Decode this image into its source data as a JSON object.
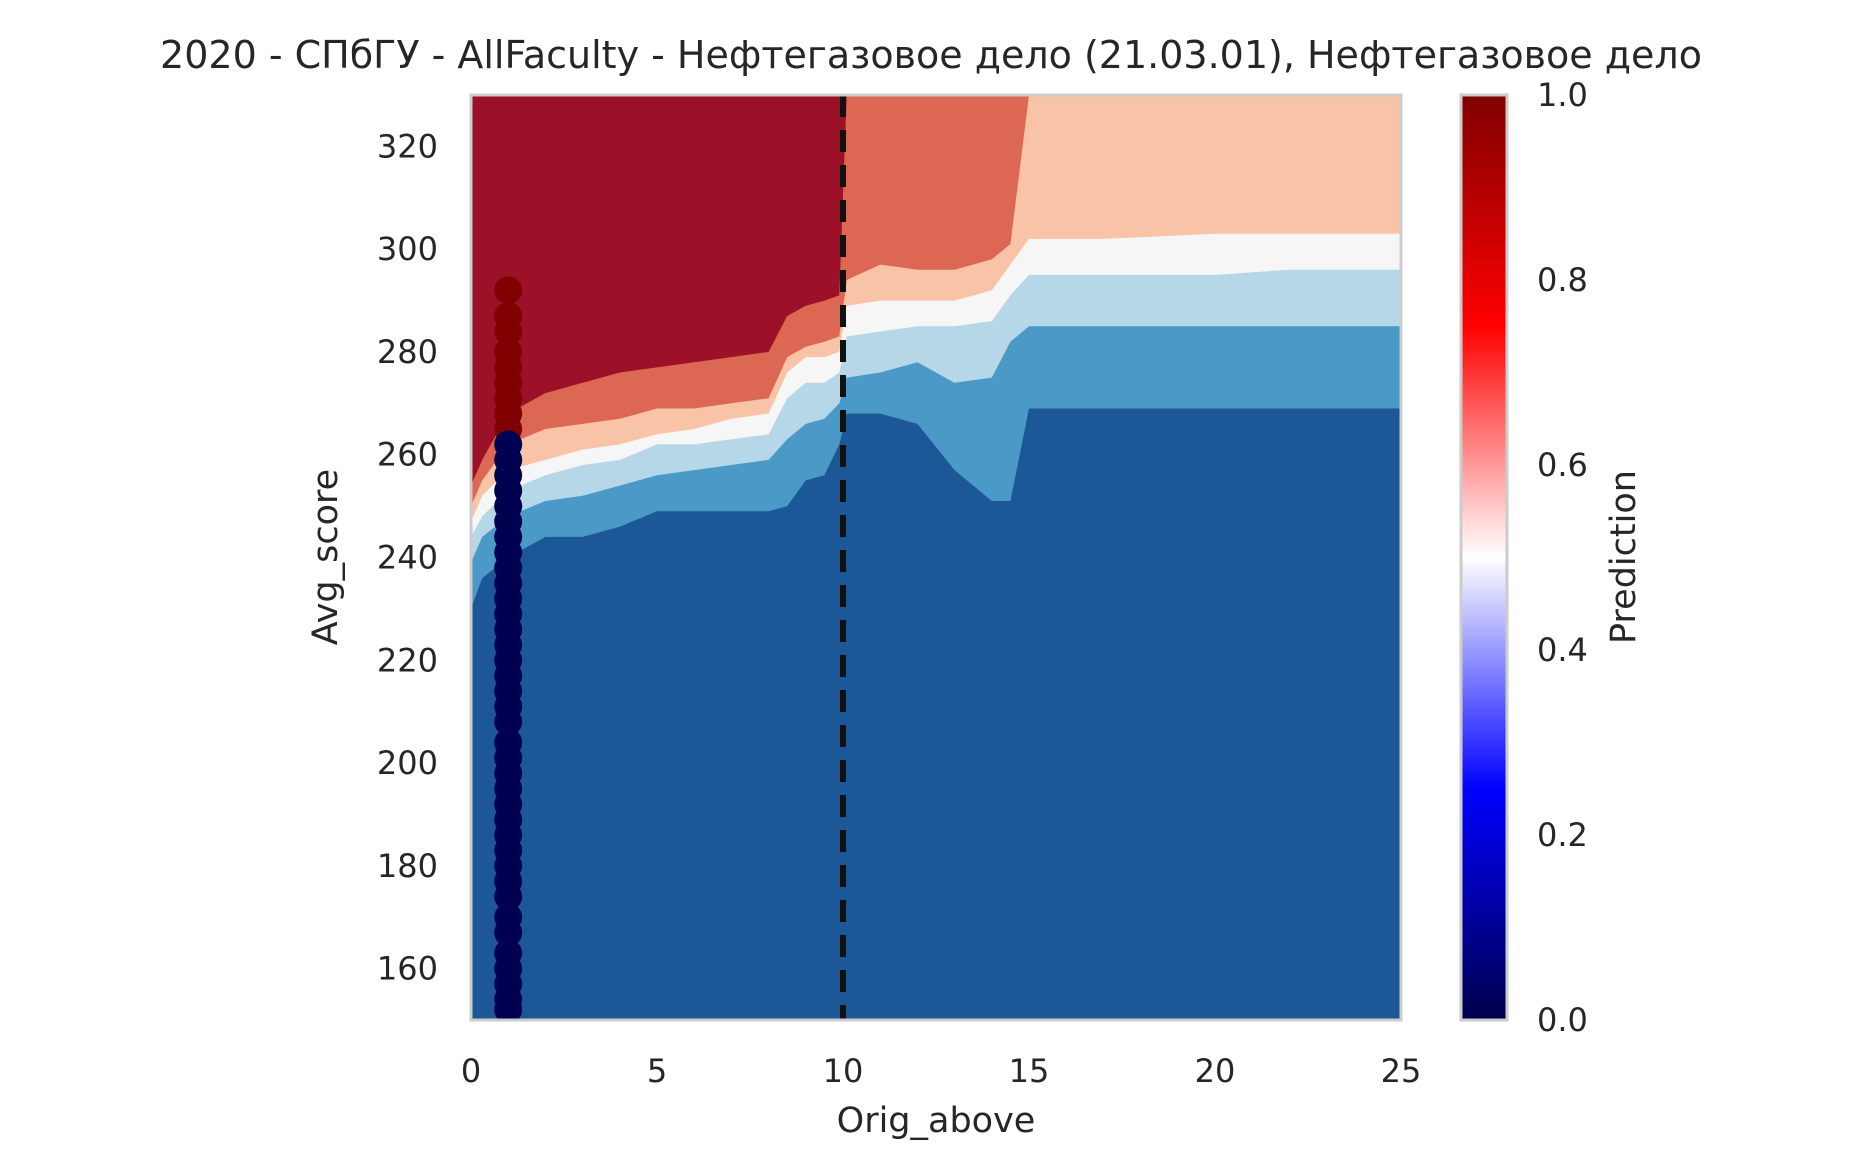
{
  "chart_data": {
    "type": "heatmap",
    "subtype": "filled-contour decision surface with scatter overlay",
    "title": "2020 - СПбГУ - AllFaculty - Нефтегазовое дело (21.03.01), Нефтегазовое дело",
    "xlabel": "Orig_above",
    "ylabel": "Avg_score",
    "xlim": [
      0,
      25
    ],
    "ylim": [
      150,
      330
    ],
    "x_ticks": [
      0,
      5,
      10,
      15,
      20,
      25
    ],
    "y_ticks": [
      160,
      180,
      200,
      220,
      240,
      260,
      280,
      300,
      320
    ],
    "grid": false,
    "colorbar": {
      "label": "Prediction",
      "range": [
        0.0,
        1.0
      ],
      "ticks": [
        0.0,
        0.2,
        0.4,
        0.6,
        0.8,
        1.0
      ],
      "colormap": "seismic",
      "stops": [
        "#00004d",
        "#0000ff",
        "#ffffff",
        "#ff0000",
        "#800000"
      ]
    },
    "contour_colors": [
      "#1c5797",
      "#4b99c7",
      "#b6d7e8",
      "#f6f6f6",
      "#f9c3a8",
      "#dc6853",
      "#9c1127"
    ],
    "contour_levels": [
      0.0,
      0.15,
      0.3,
      0.45,
      0.55,
      0.7,
      0.85,
      1.0
    ],
    "contour_boundaries": {
      "x": [
        0,
        0.3,
        1,
        2,
        3,
        4,
        5,
        6,
        7,
        8,
        8.5,
        9,
        9.5,
        9.9,
        10.1,
        11,
        12,
        13,
        14,
        14.5,
        15,
        17,
        20,
        22,
        25
      ],
      "levels": [
        {
          "lower_value": 0.15,
          "y": [
            230,
            236,
            240,
            244,
            244,
            246,
            249,
            249,
            249,
            249,
            250,
            255,
            256,
            262,
            268,
            268,
            266,
            257,
            251,
            251,
            269,
            269,
            269,
            269,
            269
          ]
        },
        {
          "lower_value": 0.3,
          "y": [
            239,
            244,
            248,
            251,
            252,
            254,
            256,
            257,
            258,
            259,
            263,
            266,
            267,
            270,
            275,
            276,
            278,
            274,
            275,
            282,
            285,
            285,
            285,
            285,
            285
          ]
        },
        {
          "lower_value": 0.45,
          "y": [
            244,
            248,
            253,
            256,
            258,
            259,
            262,
            262,
            263,
            264,
            271,
            274,
            274,
            276,
            283,
            284,
            285,
            285,
            286,
            291,
            295,
            295,
            295,
            296,
            296
          ]
        },
        {
          "lower_value": 0.55,
          "y": [
            247,
            252,
            257,
            259,
            261,
            262,
            264,
            265,
            267,
            268,
            276,
            279,
            279,
            280,
            289,
            290,
            290,
            290,
            292,
            297,
            302,
            302,
            303,
            303,
            303
          ]
        },
        {
          "lower_value": 0.7,
          "y": [
            250,
            255,
            262,
            265,
            266,
            267,
            269,
            269,
            270,
            271,
            279,
            281,
            282,
            283,
            294,
            297,
            296,
            296,
            298,
            301,
            330,
            330,
            330,
            330,
            330
          ]
        },
        {
          "lower_value": 0.85,
          "y": [
            254,
            259,
            268,
            272,
            274,
            276,
            277,
            278,
            279,
            280,
            287,
            289,
            290,
            291,
            330,
            330,
            330,
            330,
            330,
            330,
            330,
            330,
            330,
            330,
            330
          ]
        }
      ]
    },
    "threshold_line": {
      "x": 10,
      "style": "dashed",
      "color": "#111111"
    },
    "series": [
      {
        "label_value": 1,
        "color": "#800000",
        "points": [
          {
            "x": 1,
            "y": 292
          },
          {
            "x": 1,
            "y": 287
          },
          {
            "x": 1,
            "y": 284
          },
          {
            "x": 1,
            "y": 280
          },
          {
            "x": 1,
            "y": 277
          },
          {
            "x": 1,
            "y": 274
          },
          {
            "x": 1,
            "y": 271
          },
          {
            "x": 1,
            "y": 268
          },
          {
            "x": 1,
            "y": 265
          }
        ]
      },
      {
        "label_value": 0,
        "color": "#000050",
        "points": [
          {
            "x": 1,
            "y": 262
          },
          {
            "x": 1,
            "y": 259
          },
          {
            "x": 1,
            "y": 256
          },
          {
            "x": 1,
            "y": 253
          },
          {
            "x": 1,
            "y": 250
          },
          {
            "x": 1,
            "y": 247
          },
          {
            "x": 1,
            "y": 244
          },
          {
            "x": 1,
            "y": 241
          },
          {
            "x": 1,
            "y": 238
          },
          {
            "x": 1,
            "y": 235
          },
          {
            "x": 1,
            "y": 232
          },
          {
            "x": 1,
            "y": 229
          },
          {
            "x": 1,
            "y": 226
          },
          {
            "x": 1,
            "y": 223
          },
          {
            "x": 1,
            "y": 220
          },
          {
            "x": 1,
            "y": 217
          },
          {
            "x": 1,
            "y": 214
          },
          {
            "x": 1,
            "y": 211
          },
          {
            "x": 1,
            "y": 208
          },
          {
            "x": 1,
            "y": 204
          },
          {
            "x": 1,
            "y": 201
          },
          {
            "x": 1,
            "y": 198
          },
          {
            "x": 1,
            "y": 195
          },
          {
            "x": 1,
            "y": 192
          },
          {
            "x": 1,
            "y": 189
          },
          {
            "x": 1,
            "y": 186
          },
          {
            "x": 1,
            "y": 183
          },
          {
            "x": 1,
            "y": 180
          },
          {
            "x": 1,
            "y": 177
          },
          {
            "x": 1,
            "y": 174
          },
          {
            "x": 1,
            "y": 170
          },
          {
            "x": 1,
            "y": 167
          },
          {
            "x": 1,
            "y": 163
          },
          {
            "x": 1,
            "y": 160
          },
          {
            "x": 1,
            "y": 157
          },
          {
            "x": 1,
            "y": 154
          },
          {
            "x": 1,
            "y": 152
          }
        ]
      }
    ]
  }
}
